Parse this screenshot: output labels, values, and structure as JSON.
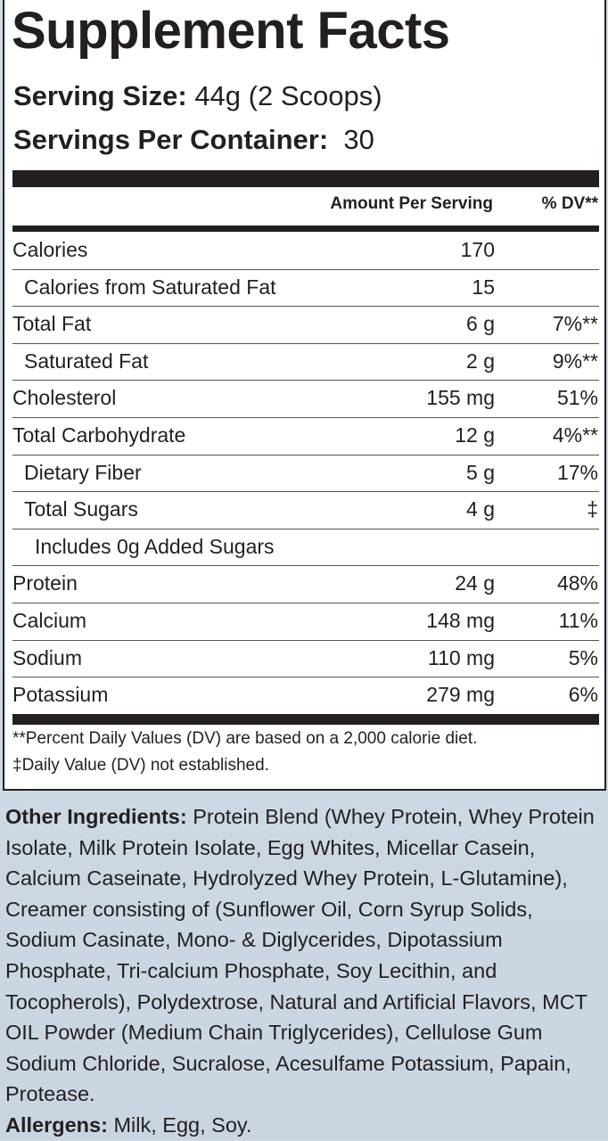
{
  "title": "Supplement Facts",
  "serving_size": {
    "label": "Serving Size:",
    "value": "44g (2 Scoops)"
  },
  "servings_per_container": {
    "label": "Servings Per Container:",
    "value": "30"
  },
  "headers": {
    "amount": "Amount Per Serving",
    "dv": "% DV**"
  },
  "rows": [
    {
      "label": "Calories",
      "amount": "170",
      "dv": "",
      "indent": 0
    },
    {
      "label": "Calories from Saturated Fat",
      "amount": "15",
      "dv": "",
      "indent": 1
    },
    {
      "label": "Total Fat",
      "amount": "6 g",
      "dv": "7%**",
      "indent": 0
    },
    {
      "label": "Saturated Fat",
      "amount": "2 g",
      "dv": "9%**",
      "indent": 1
    },
    {
      "label": "Cholesterol",
      "amount": "155 mg",
      "dv": "51%",
      "indent": 0
    },
    {
      "label": "Total Carbohydrate",
      "amount": "12 g",
      "dv": "4%**",
      "indent": 0
    },
    {
      "label": "Dietary Fiber",
      "amount": "5 g",
      "dv": "17%",
      "indent": 1
    },
    {
      "label": "Total Sugars",
      "amount": "4 g",
      "dv": "‡",
      "indent": 1
    },
    {
      "label": "Includes 0g Added Sugars",
      "amount": "",
      "dv": "",
      "indent": 2
    },
    {
      "label": "Protein",
      "amount": "24 g",
      "dv": "48%",
      "indent": 0
    },
    {
      "label": "Calcium",
      "amount": "148 mg",
      "dv": "11%",
      "indent": 0
    },
    {
      "label": "Sodium",
      "amount": "110 mg",
      "dv": "5%",
      "indent": 0
    },
    {
      "label": "Potassium",
      "amount": "279 mg",
      "dv": "6%",
      "indent": 0
    }
  ],
  "footnotes": [
    "**Percent Daily Values (DV) are based on a 2,000 calorie diet.",
    "‡Daily Value (DV) not established."
  ],
  "other_ingredients": {
    "label": "Other Ingredients:",
    "text": "Protein Blend (Whey Protein, Whey Protein Isolate, Milk Protein Isolate, Egg Whites, Micellar Casein, Calcium Caseinate, Hydrolyzed Whey Protein, L-Glutamine), Creamer consisting of (Sunflower Oil, Corn Syrup Solids, Sodium Casinate, Mono- & Diglycerides, Dipotassium Phosphate, Tri-calcium Phosphate, Soy Lecithin, and Tocopherols), Polydextrose, Natural and Artificial Flavors, MCT OIL Powder (Medium Chain Triglycerides), Cellulose Gum Sodium Chloride, Sucralose, Acesulfame Potassium, Papain, Protease."
  },
  "allergens": {
    "label": "Allergens:",
    "text": "Milk, Egg, Soy."
  }
}
